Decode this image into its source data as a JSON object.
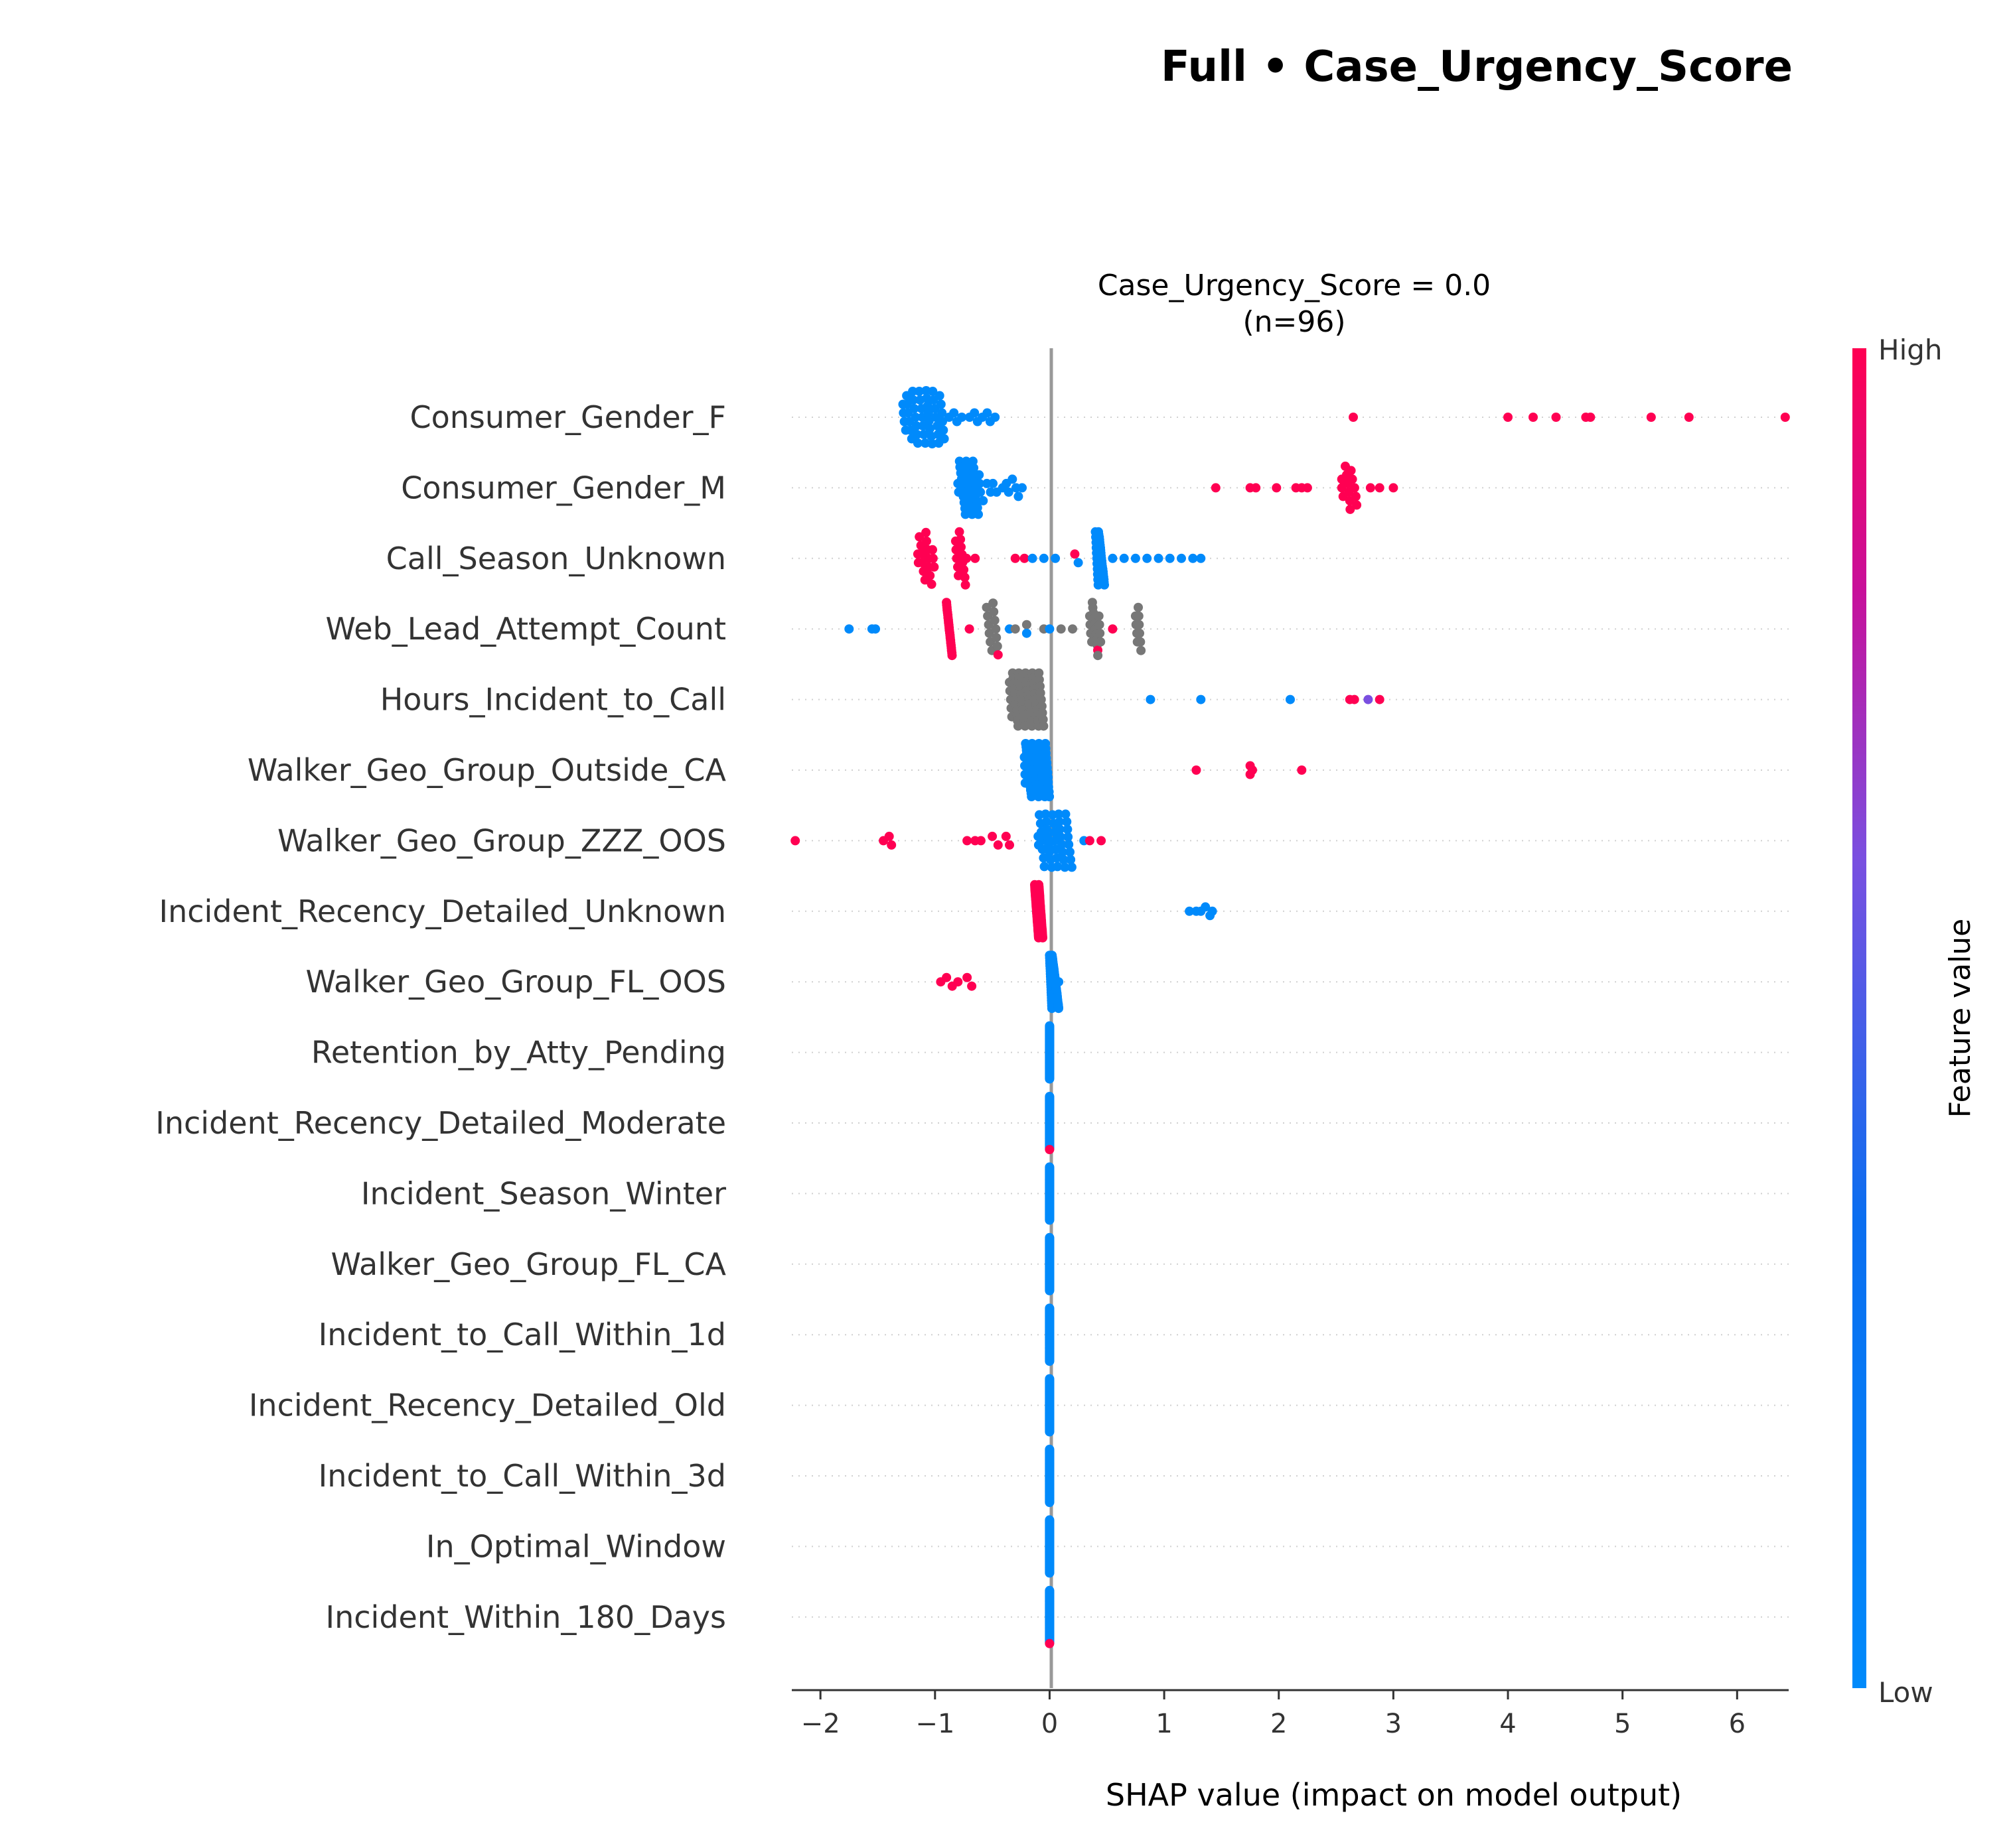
{
  "title": "Full • Case_Urgency_Score",
  "subtitle_line1": "Case_Urgency_Score = 0.0",
  "subtitle_line2": "(n=96)",
  "xlabel": "SHAP value (impact on model output)",
  "colorbar": {
    "label": "Feature value",
    "high": "High",
    "low": "Low",
    "high_color": "#ff0052",
    "low_color": "#008afb"
  },
  "colors": {
    "high": "#ff0052",
    "low": "#008afb",
    "mid": "#7a4fe0",
    "missing": "#777777"
  },
  "chart_data": {
    "type": "scatter",
    "plot_kind": "shap_beeswarm",
    "xlim": [
      -2.25,
      6.45
    ],
    "xticks": [
      -2,
      -1,
      0,
      1,
      2,
      3,
      4,
      5,
      6
    ],
    "xtick_labels": [
      "−2",
      "−1",
      "0",
      "1",
      "2",
      "3",
      "4",
      "5",
      "6"
    ],
    "features": [
      {
        "name": "Consumer_Gender_F",
        "groups": [
          {
            "c": "low",
            "n": 44,
            "x0": -1.28,
            "x1": -0.92
          },
          {
            "c": "low",
            "n": 12,
            "x0": -0.92,
            "x1": -0.45
          },
          {
            "c": "high",
            "pts": [
              2.65,
              4.0,
              4.22,
              4.42,
              4.68,
              4.72,
              5.25,
              5.58,
              6.42
            ]
          }
        ]
      },
      {
        "name": "Consumer_Gender_M",
        "groups": [
          {
            "c": "low",
            "n": 34,
            "x0": -0.8,
            "x1": -0.6
          },
          {
            "c": "low",
            "n": 12,
            "x0": -0.58,
            "x1": -0.22
          },
          {
            "c": "high",
            "pts": [
              1.45,
              1.75,
              1.8,
              1.98,
              2.15,
              2.2,
              2.25,
              2.55,
              2.6,
              2.62,
              2.68,
              2.8,
              2.88,
              3.0
            ]
          },
          {
            "c": "high",
            "n": 10,
            "x0": 2.55,
            "x1": 2.68
          }
        ]
      },
      {
        "name": "Call_Season_Unknown",
        "groups": [
          {
            "c": "high",
            "n": 18,
            "x0": -1.15,
            "x1": -1.0
          },
          {
            "c": "high",
            "n": 14,
            "x0": -0.82,
            "x1": -0.72
          },
          {
            "c": "high",
            "pts": [
              -0.65,
              -0.3,
              -0.22,
              0.22
            ]
          },
          {
            "c": "low",
            "pts": [
              -0.15,
              -0.05,
              0.05,
              0.25
            ]
          },
          {
            "c": "low",
            "n": 32,
            "x0": 0.4,
            "x1": 0.48
          },
          {
            "c": "low",
            "pts": [
              0.55,
              0.65,
              0.75,
              0.85,
              0.95,
              1.05,
              1.15,
              1.25,
              1.32
            ]
          }
        ]
      },
      {
        "name": "Web_Lead_Attempt_Count",
        "groups": [
          {
            "c": "low",
            "pts": [
              -1.75,
              -1.55,
              -1.52
            ]
          },
          {
            "c": "high",
            "n": 22,
            "x0": -0.9,
            "x1": -0.85
          },
          {
            "c": "high",
            "pts": [
              -0.7,
              -0.45,
              0.42,
              0.55
            ]
          },
          {
            "c": "missing",
            "n": 12,
            "x0": -0.55,
            "x1": -0.45
          },
          {
            "c": "missing",
            "pts": [
              -0.3,
              -0.2,
              -0.05,
              0.1,
              0.2
            ]
          },
          {
            "c": "missing",
            "n": 18,
            "x0": 0.35,
            "x1": 0.45
          },
          {
            "c": "missing",
            "n": 10,
            "x0": 0.75,
            "x1": 0.8
          },
          {
            "c": "low",
            "pts": [
              -0.35,
              -0.2,
              0.0
            ]
          }
        ]
      },
      {
        "name": "Hours_Incident_to_Call",
        "groups": [
          {
            "c": "missing",
            "n": 60,
            "x0": -0.35,
            "x1": -0.05
          },
          {
            "c": "low",
            "pts": [
              0.88,
              1.32,
              2.1
            ]
          },
          {
            "c": "high",
            "pts": [
              2.62,
              2.66,
              2.88
            ]
          },
          {
            "c": "mid",
            "pts": [
              2.78
            ]
          }
        ]
      },
      {
        "name": "Walker_Geo_Group_Outside_CA",
        "groups": [
          {
            "c": "low",
            "n": 70,
            "x0": -0.22,
            "x1": 0.0
          },
          {
            "c": "high",
            "pts": [
              1.28,
              1.75,
              1.75,
              1.77,
              2.2
            ]
          }
        ]
      },
      {
        "name": "Walker_Geo_Group_ZZZ_OOS",
        "groups": [
          {
            "c": "high",
            "pts": [
              -2.22,
              -1.45,
              -1.4,
              -1.38,
              -0.72,
              -0.65,
              -0.6,
              -0.5,
              -0.45,
              -0.38,
              -0.35,
              0.35,
              0.45
            ]
          },
          {
            "c": "low",
            "n": 40,
            "x0": -0.1,
            "x1": 0.2
          },
          {
            "c": "low",
            "pts": [
              0.3
            ]
          }
        ]
      },
      {
        "name": "Incident_Recency_Detailed_Unknown",
        "groups": [
          {
            "c": "high",
            "n": 70,
            "x0": -0.13,
            "x1": -0.06
          },
          {
            "c": "low",
            "pts": [
              1.22,
              1.28,
              1.32,
              1.36,
              1.4,
              1.42
            ]
          }
        ]
      },
      {
        "name": "Walker_Geo_Group_FL_OOS",
        "groups": [
          {
            "c": "high",
            "pts": [
              -0.95,
              -0.9,
              -0.85,
              -0.8,
              -0.72,
              -0.68
            ]
          },
          {
            "c": "low",
            "n": 80,
            "x0": 0.0,
            "x1": 0.08
          }
        ]
      },
      {
        "name": "Retention_by_Atty_Pending",
        "groups": [
          {
            "c": "low",
            "n": 96,
            "x0": 0.0,
            "x1": 0.0
          }
        ]
      },
      {
        "name": "Incident_Recency_Detailed_Moderate",
        "groups": [
          {
            "c": "low",
            "n": 94,
            "x0": 0.0,
            "x1": 0.0
          },
          {
            "c": "high",
            "pts": [
              0.0
            ]
          }
        ]
      },
      {
        "name": "Incident_Season_Winter",
        "groups": [
          {
            "c": "low",
            "n": 96,
            "x0": 0.0,
            "x1": 0.0
          }
        ]
      },
      {
        "name": "Walker_Geo_Group_FL_CA",
        "groups": [
          {
            "c": "low",
            "n": 96,
            "x0": 0.0,
            "x1": 0.0
          }
        ]
      },
      {
        "name": "Incident_to_Call_Within_1d",
        "groups": [
          {
            "c": "low",
            "n": 96,
            "x0": 0.0,
            "x1": 0.0
          }
        ]
      },
      {
        "name": "Incident_Recency_Detailed_Old",
        "groups": [
          {
            "c": "low",
            "n": 96,
            "x0": 0.0,
            "x1": 0.0
          }
        ]
      },
      {
        "name": "Incident_to_Call_Within_3d",
        "groups": [
          {
            "c": "low",
            "n": 96,
            "x0": 0.0,
            "x1": 0.0
          }
        ]
      },
      {
        "name": "In_Optimal_Window",
        "groups": [
          {
            "c": "low",
            "n": 96,
            "x0": 0.0,
            "x1": 0.0
          }
        ]
      },
      {
        "name": "Incident_Within_180_Days",
        "groups": [
          {
            "c": "low",
            "n": 94,
            "x0": 0.0,
            "x1": 0.0
          },
          {
            "c": "high",
            "pts": [
              0.0
            ]
          }
        ]
      }
    ]
  }
}
